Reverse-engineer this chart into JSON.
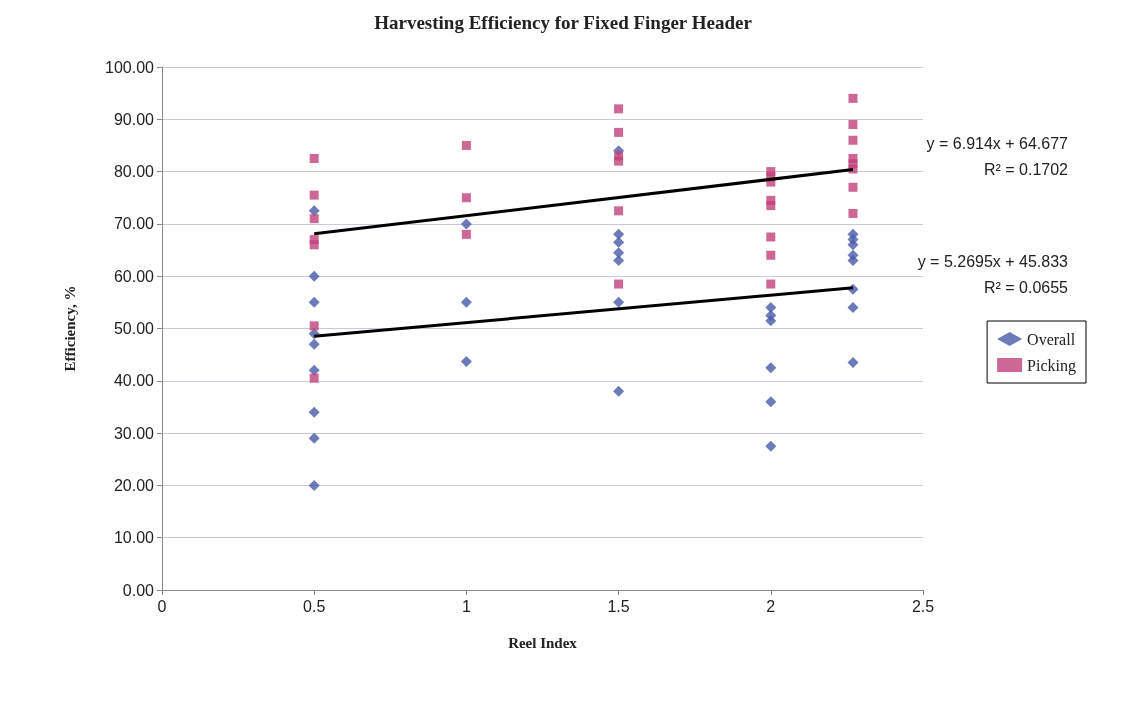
{
  "chart_data": {
    "type": "scatter",
    "title": "Harvesting Efficiency for Fixed Finger Header",
    "xlabel": "Reel Index",
    "ylabel": "Efficiency, %",
    "xlim": [
      0,
      2.5
    ],
    "xticks": [
      0,
      0.5,
      1,
      1.5,
      2,
      2.5
    ],
    "ylim": [
      0,
      100
    ],
    "yticks": [
      {
        "value": 0,
        "label": "0.00"
      },
      {
        "value": 10,
        "label": "10.00"
      },
      {
        "value": 20,
        "label": "20.00"
      },
      {
        "value": 30,
        "label": "30.00"
      },
      {
        "value": 40,
        "label": "40.00"
      },
      {
        "value": 50,
        "label": "50.00"
      },
      {
        "value": 60,
        "label": "60.00"
      },
      {
        "value": 70,
        "label": "70.00"
      },
      {
        "value": 80,
        "label": "80.00"
      },
      {
        "value": 90,
        "label": "90.00"
      },
      {
        "value": 100,
        "label": "100.00"
      }
    ],
    "grid": "y",
    "legend": "right",
    "series": [
      {
        "name": "Overall",
        "color": "#4a5aa8",
        "marker": "diamond",
        "x": [
          0.5,
          0.5,
          0.5,
          0.5,
          0.5,
          0.5,
          0.5,
          0.5,
          0.5,
          1,
          1,
          1,
          1.5,
          1.5,
          1.5,
          1.5,
          1.5,
          1.5,
          1.5,
          2,
          2,
          2,
          2,
          2,
          2,
          2.27,
          2.27,
          2.27,
          2.27,
          2.27,
          2.27,
          2.27,
          2.27
        ],
        "values": [
          72.5,
          60,
          55,
          49,
          47,
          42,
          34,
          29,
          20,
          70,
          55,
          43.7,
          84,
          68,
          66.5,
          64.5,
          63,
          55,
          38,
          54,
          52.5,
          51.5,
          42.5,
          36,
          27.5,
          68,
          67,
          66,
          64,
          63,
          57.5,
          54,
          43.5
        ]
      },
      {
        "name": "Picking",
        "color": "#c0417a",
        "marker": "square",
        "x": [
          0.5,
          0.5,
          0.5,
          0.5,
          0.5,
          0.5,
          0.5,
          1,
          1,
          1,
          1.5,
          1.5,
          1.5,
          1.5,
          1.5,
          1.5,
          2,
          2,
          2,
          2,
          2,
          2,
          2,
          2,
          2.27,
          2.27,
          2.27,
          2.27,
          2.27,
          2.27,
          2.27,
          2.27
        ],
        "values": [
          82.5,
          75.5,
          71,
          67,
          66,
          50.5,
          40.5,
          85,
          75,
          68,
          92,
          87.5,
          83,
          82,
          72.5,
          58.5,
          80,
          79,
          78,
          74.5,
          73.5,
          67.5,
          64,
          58.5,
          94,
          89,
          86,
          82.5,
          81.5,
          80.5,
          77,
          72
        ]
      },
      {
        "type": "line",
        "color": "#000000",
        "marker": "none",
        "x": [
          0.5,
          2.27
        ],
        "values": [
          68.1,
          80.4
        ]
      },
      {
        "type": "line",
        "color": "#000000",
        "marker": "none",
        "x": [
          0.5,
          2.27
        ],
        "values": [
          48.5,
          57.8
        ]
      }
    ],
    "annotations": [
      "y = 6.914x + 64.677\nR² = 0.1702",
      "y = 5.2695x + 45.833\nR² = 0.0655"
    ]
  }
}
